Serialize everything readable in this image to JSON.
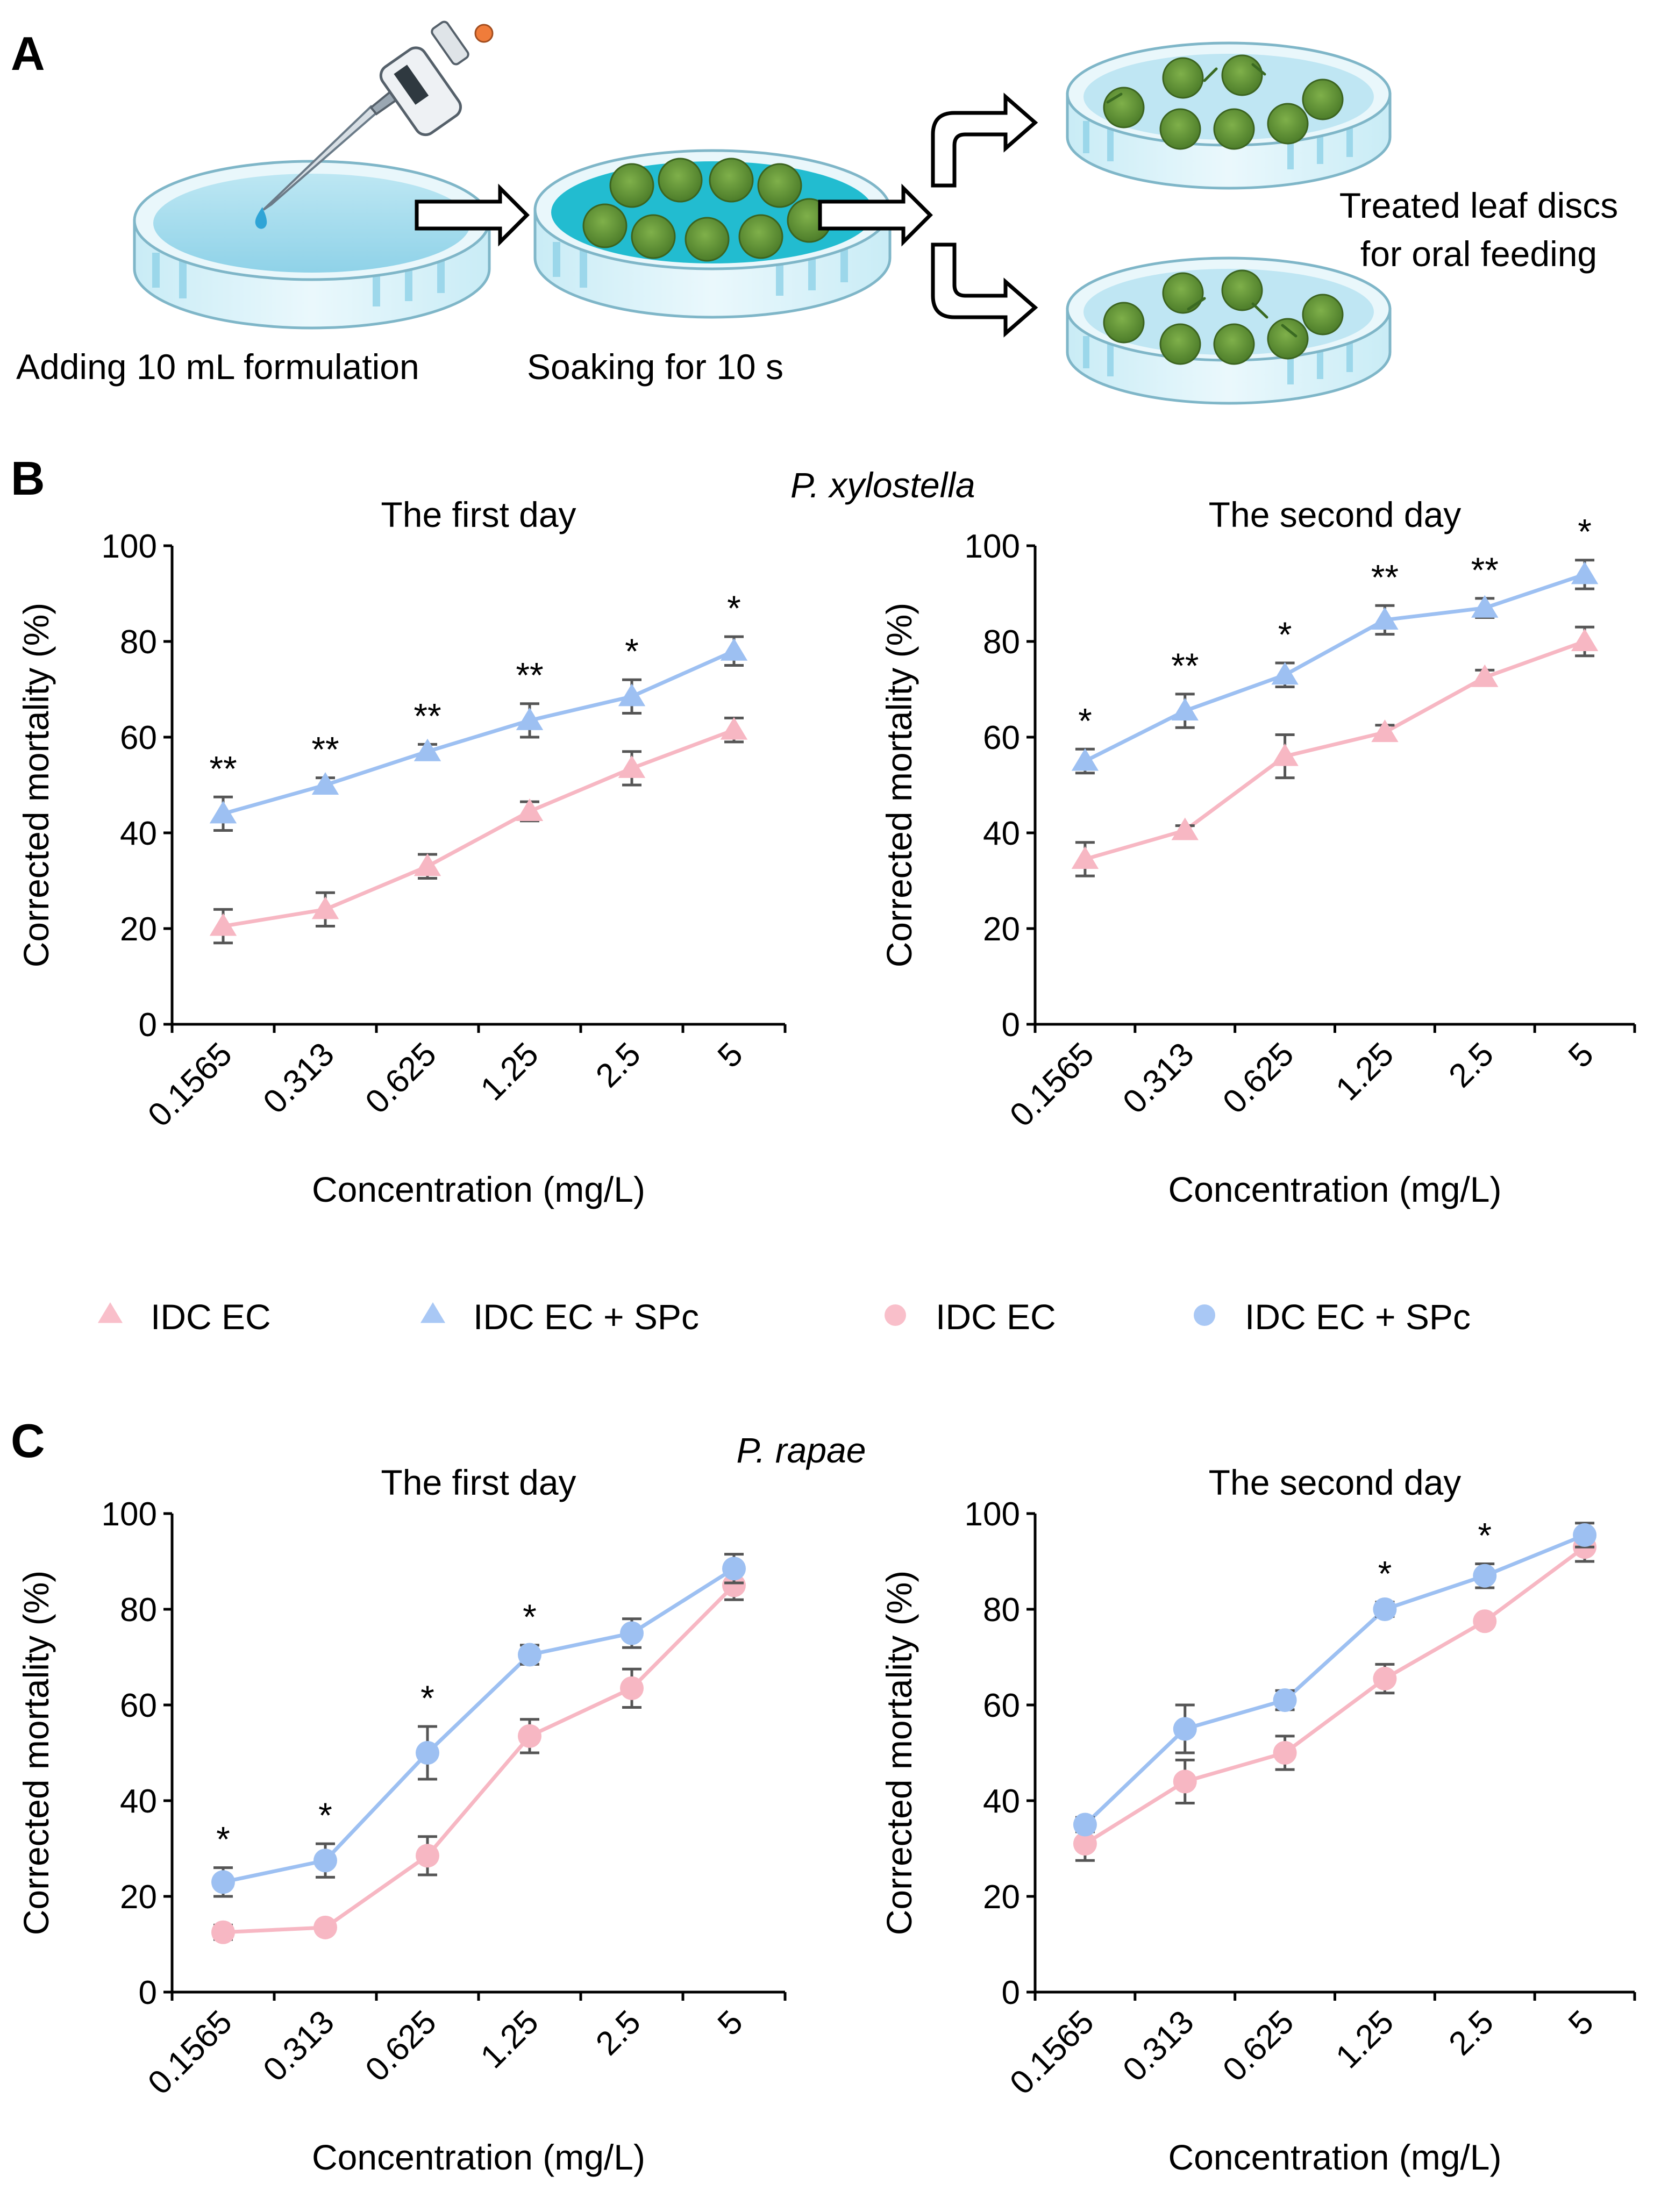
{
  "panels": {
    "a": "A",
    "b": "B",
    "c": "C"
  },
  "workflow": {
    "step1_caption": "Adding 10 mL formulation",
    "step2_caption": "Soaking for 10 s",
    "step3_caption_line1": "Treated leaf discs",
    "step3_caption_line2": "for oral feeding"
  },
  "species": {
    "b": "P. xylostella",
    "c": "P. rapae"
  },
  "legend": [
    {
      "label": "IDC EC",
      "marker": "triangle",
      "color": "#f9bfca"
    },
    {
      "label": "IDC EC + SPc",
      "marker": "triangle",
      "color": "#a9c8f5"
    },
    {
      "label": "IDC EC",
      "marker": "circle",
      "color": "#f9bfca"
    },
    {
      "label": "IDC EC + SPc",
      "marker": "circle",
      "color": "#a9c8f5"
    }
  ],
  "colors": {
    "idc_ec": "#f7b7c3",
    "idc_ec_spc": "#9dc0f2",
    "error_bar": "#555555"
  },
  "chart_data": [
    {
      "type": "line",
      "id": "b1",
      "panel": "B",
      "title": "The first day",
      "marker": "triangle",
      "categories": [
        "0.1565",
        "0.313",
        "0.625",
        "1.25",
        "2.5",
        "5"
      ],
      "xlabel": "Concentration (mg/L)",
      "ylabel": "Corrected mortality (%)",
      "ylim": [
        0,
        100
      ],
      "yticks": [
        0,
        20,
        40,
        60,
        80,
        100
      ],
      "series": [
        {
          "name": "IDC EC",
          "values": [
            20.5,
            24,
            33,
            44.5,
            53.5,
            61.5
          ],
          "err": [
            3.5,
            3.5,
            2.5,
            2,
            3.5,
            2.5
          ]
        },
        {
          "name": "IDC EC + SPc",
          "values": [
            44,
            50,
            57,
            63.5,
            68.5,
            78
          ],
          "err": [
            3.5,
            1.5,
            1.5,
            3.5,
            3.5,
            3
          ]
        }
      ],
      "significance": [
        "**",
        "**",
        "**",
        "**",
        "*",
        "*"
      ]
    },
    {
      "type": "line",
      "id": "b2",
      "panel": "B",
      "title": "The second day",
      "marker": "triangle",
      "categories": [
        "0.1565",
        "0.313",
        "0.625",
        "1.25",
        "2.5",
        "5"
      ],
      "xlabel": "Concentration (mg/L)",
      "ylabel": "Corrected mortality (%)",
      "ylim": [
        0,
        100
      ],
      "yticks": [
        0,
        20,
        40,
        60,
        80,
        100
      ],
      "series": [
        {
          "name": "IDC EC",
          "values": [
            34.5,
            40.5,
            56,
            61,
            72.5,
            80
          ],
          "err": [
            3.5,
            1,
            4.5,
            1.5,
            1.5,
            3
          ]
        },
        {
          "name": "IDC EC + SPc",
          "values": [
            55,
            65.5,
            73,
            84.5,
            87,
            94
          ],
          "err": [
            2.5,
            3.5,
            2.5,
            3,
            2,
            3
          ]
        }
      ],
      "significance": [
        "*",
        "**",
        "*",
        "**",
        "**",
        "*"
      ]
    },
    {
      "type": "line",
      "id": "c1",
      "panel": "C",
      "title": "The first day",
      "marker": "circle",
      "categories": [
        "0.1565",
        "0.313",
        "0.625",
        "1.25",
        "2.5",
        "5"
      ],
      "xlabel": "Concentration (mg/L)",
      "ylabel": "Corrected mortality (%)",
      "ylim": [
        0,
        100
      ],
      "yticks": [
        0,
        20,
        40,
        60,
        80,
        100
      ],
      "series": [
        {
          "name": "IDC EC",
          "values": [
            12.5,
            13.5,
            28.5,
            53.5,
            63.5,
            85
          ],
          "err": [
            1.5,
            1,
            4,
            3.5,
            4,
            3
          ]
        },
        {
          "name": "IDC EC + SPc",
          "values": [
            23,
            27.5,
            50,
            70.5,
            75,
            88.5
          ],
          "err": [
            3,
            3.5,
            5.5,
            2,
            3,
            3
          ]
        }
      ],
      "significance": [
        "*",
        "*",
        "*",
        "*",
        "",
        ""
      ]
    },
    {
      "type": "line",
      "id": "c2",
      "panel": "C",
      "title": "The second day",
      "marker": "circle",
      "categories": [
        "0.1565",
        "0.313",
        "0.625",
        "1.25",
        "2.5",
        "5"
      ],
      "xlabel": "Concentration (mg/L)",
      "ylabel": "Corrected mortality (%)",
      "ylim": [
        0,
        100
      ],
      "yticks": [
        0,
        20,
        40,
        60,
        80,
        100
      ],
      "series": [
        {
          "name": "IDC EC",
          "values": [
            31,
            44,
            50,
            65.5,
            77.5,
            93
          ],
          "err": [
            3.5,
            4.5,
            3.5,
            3,
            1,
            3
          ]
        },
        {
          "name": "IDC EC + SPc",
          "values": [
            35,
            55,
            61,
            80,
            87,
            95.5
          ],
          "err": [
            1.5,
            5,
            2,
            1.5,
            2.5,
            2.5
          ]
        }
      ],
      "significance": [
        "",
        "",
        "",
        "*",
        "*",
        ""
      ]
    }
  ]
}
